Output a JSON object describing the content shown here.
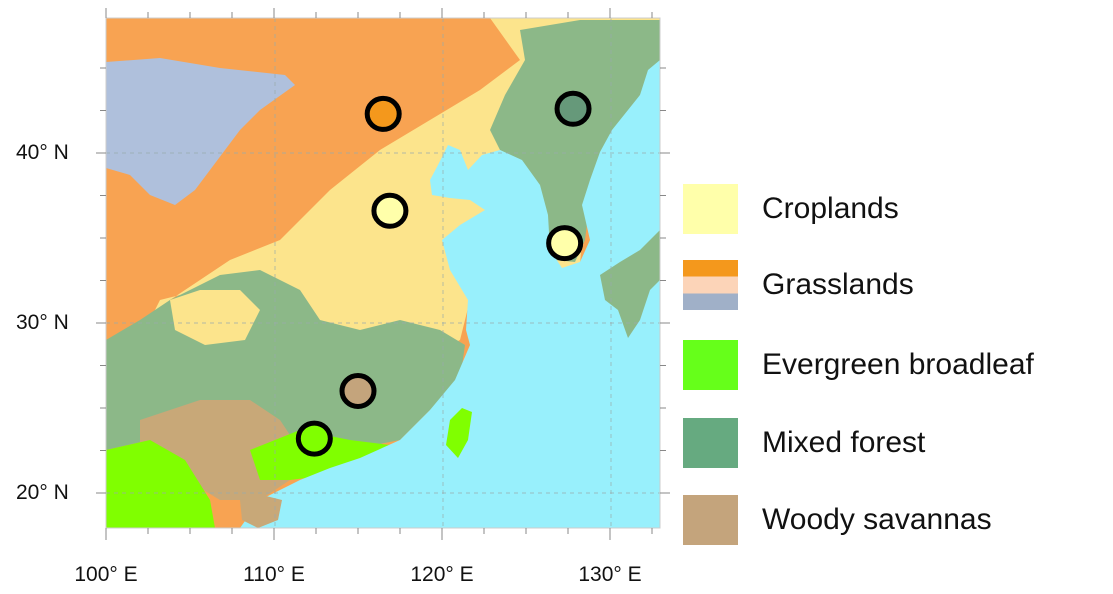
{
  "axes": {
    "lat_ticks": [
      {
        "value": 40,
        "label": "40° N"
      },
      {
        "value": 30,
        "label": "30° N"
      },
      {
        "value": 20,
        "label": "20° N"
      }
    ],
    "lon_ticks": [
      {
        "value": 100,
        "label": "100° E"
      },
      {
        "value": 110,
        "label": "110° E"
      },
      {
        "value": 120,
        "label": "120° E"
      },
      {
        "value": 130,
        "label": "130° E"
      }
    ],
    "lon_range": [
      100,
      133
    ],
    "lat_range": [
      18,
      48
    ],
    "grid": true
  },
  "colors": {
    "sea": "#98F0FC",
    "grassland_map": "#F8A352",
    "barren_map": "#AFC0DC",
    "cropland_map": "#FCE48C",
    "mixed_forest_map": "#8CB888",
    "evergreen_map": "#80FF00",
    "savanna_map": "#C8A878",
    "urban": "#FF0000"
  },
  "legend": [
    {
      "label": "Croplands",
      "colors": [
        "#FFFFAA"
      ]
    },
    {
      "label": "Grasslands",
      "colors": [
        "#F4981C",
        "#FCD4B8",
        "#A0B0C8"
      ]
    },
    {
      "label": "Evergreen broadleaf",
      "colors": [
        "#66FF1A"
      ]
    },
    {
      "label": "Mixed forest",
      "colors": [
        "#66AA80"
      ]
    },
    {
      "label": "Woody savannas",
      "colors": [
        "#C4A47C"
      ]
    }
  ],
  "sites": [
    {
      "lon": 116.5,
      "lat": 42.3,
      "type": "Grasslands",
      "color": "#F4981C"
    },
    {
      "lon": 127.8,
      "lat": 42.6,
      "type": "Mixed forest",
      "color": "#66997A"
    },
    {
      "lon": 116.9,
      "lat": 36.6,
      "type": "Croplands",
      "color": "#FFFFAA"
    },
    {
      "lon": 127.3,
      "lat": 34.7,
      "type": "Croplands",
      "color": "#FFFFAA"
    },
    {
      "lon": 115.0,
      "lat": 26.0,
      "type": "Woody savannas",
      "color": "#C4A47C"
    },
    {
      "lon": 112.4,
      "lat": 23.2,
      "type": "Evergreen broadleaf",
      "color": "#80FF00"
    }
  ]
}
